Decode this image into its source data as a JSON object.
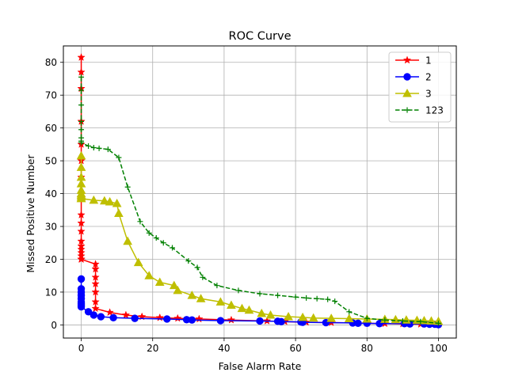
{
  "chart_data": {
    "type": "line",
    "title": "ROC Curve",
    "xlabel": "False Alarm Rate",
    "ylabel": "Missed Positive Number",
    "xlim": [
      -5,
      105
    ],
    "ylim": [
      -4,
      85
    ],
    "xticks": [
      0,
      20,
      40,
      60,
      80,
      100
    ],
    "yticks": [
      0,
      10,
      20,
      30,
      40,
      50,
      60,
      70,
      80
    ],
    "grid": true,
    "legend_position": "top-right",
    "series": [
      {
        "name": "1",
        "color": "#ff0000",
        "linestyle": "solid",
        "marker": "star",
        "x": [
          0,
          0,
          0,
          0,
          0,
          0,
          0,
          0,
          0,
          0,
          0,
          0,
          0,
          0,
          0,
          0,
          0,
          0,
          0,
          0,
          4,
          4,
          4,
          4,
          4,
          4,
          4,
          8,
          12.5,
          17,
          22,
          27,
          33,
          42,
          52,
          57,
          63,
          70,
          76,
          80,
          85,
          90,
          95,
          100
        ],
        "y": [
          81.5,
          77,
          72,
          62,
          55,
          50,
          45,
          38.5,
          33.5,
          31,
          28.5,
          25.5,
          24,
          23,
          22,
          21,
          20,
          20,
          20,
          20,
          18.5,
          17,
          14.5,
          12.5,
          10,
          7,
          5,
          3.8,
          3,
          2.5,
          2.2,
          2,
          1.8,
          1.5,
          1.2,
          1,
          0.8,
          0.7,
          0.6,
          0.5,
          0.4,
          0.3,
          0.2,
          0.1
        ]
      },
      {
        "name": "2",
        "color": "#0000ff",
        "linestyle": "solid",
        "marker": "circle",
        "x": [
          0,
          0,
          0,
          0,
          0,
          0,
          0,
          0,
          0,
          2,
          3.5,
          5.5,
          9,
          15,
          24,
          29.5,
          31,
          39,
          50,
          55,
          56,
          61.5,
          62,
          68.5,
          76,
          77.5,
          80,
          83.5,
          90.5,
          92,
          96,
          97.5,
          99,
          100
        ],
        "y": [
          14,
          11,
          10,
          9,
          8,
          7,
          6.5,
          6,
          5.5,
          4,
          3,
          2.5,
          2.2,
          2,
          1.8,
          1.6,
          1.5,
          1.3,
          1.2,
          1.1,
          1,
          0.9,
          0.8,
          0.7,
          0.6,
          0.5,
          0.5,
          0.4,
          0.4,
          0.3,
          0.3,
          0.2,
          0.2,
          0.1
        ]
      },
      {
        "name": "3",
        "color": "#bfbf00",
        "linestyle": "solid",
        "marker": "triangle",
        "x": [
          0,
          0,
          0,
          0,
          0,
          0,
          0,
          0,
          0,
          0,
          3.5,
          6.5,
          8,
          10,
          10.5,
          13,
          16,
          19,
          22,
          26,
          27,
          31,
          33.5,
          39,
          42,
          45,
          47,
          50.5,
          53,
          58,
          62,
          65,
          70,
          75,
          80,
          85,
          88,
          91,
          94,
          96,
          98,
          100
        ],
        "y": [
          51.5,
          48,
          45,
          43,
          41,
          40,
          39.5,
          39,
          38.5,
          38.5,
          38,
          37.8,
          37.5,
          37,
          34,
          25.5,
          19,
          15,
          13,
          12,
          10.5,
          9,
          8,
          7,
          6,
          5,
          4.5,
          3.5,
          3,
          2.5,
          2.3,
          2.1,
          2,
          1.9,
          1.8,
          1.7,
          1.6,
          1.5,
          1.4,
          1.3,
          1.2,
          1.1
        ]
      },
      {
        "name": "123",
        "color": "#008000",
        "linestyle": "dashed",
        "marker": "plus",
        "x": [
          0,
          0,
          0,
          0,
          0,
          0,
          0,
          0,
          2,
          3.5,
          5,
          7.5,
          10.5,
          13,
          16.5,
          19,
          21,
          23,
          25.5,
          30,
          32.5,
          34,
          38,
          44,
          50,
          55,
          60,
          63,
          66,
          69,
          71,
          75,
          80,
          85,
          90,
          95,
          100
        ],
        "y": [
          75.5,
          71.5,
          67,
          62,
          59.5,
          57,
          56,
          55.5,
          54.5,
          54,
          53.8,
          53.5,
          51,
          42,
          31.5,
          28,
          26.5,
          25,
          23.5,
          19.5,
          17.5,
          14.5,
          12,
          10.5,
          9.5,
          9,
          8.5,
          8.2,
          8,
          7.8,
          7.2,
          4,
          2,
          1.5,
          1.2,
          1,
          0.5
        ]
      }
    ]
  }
}
